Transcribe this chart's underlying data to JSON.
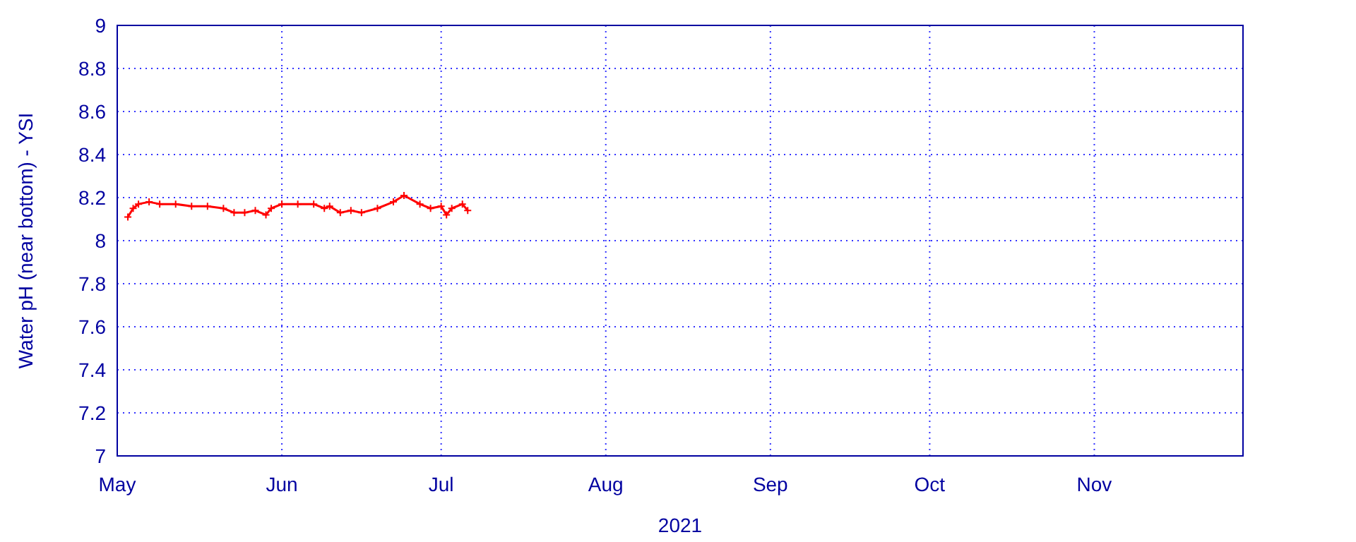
{
  "chart_data": {
    "type": "line",
    "xlabel": "2021",
    "ylabel": "Water pH (near bottom) - YSI",
    "xlim": [
      "2021-05-01",
      "2021-11-29"
    ],
    "xticks": [
      {
        "value": "2021-05-01",
        "label": "May"
      },
      {
        "value": "2021-06-01",
        "label": "Jun"
      },
      {
        "value": "2021-07-01",
        "label": "Jul"
      },
      {
        "value": "2021-08-01",
        "label": "Aug"
      },
      {
        "value": "2021-09-01",
        "label": "Sep"
      },
      {
        "value": "2021-10-01",
        "label": "Oct"
      },
      {
        "value": "2021-11-01",
        "label": "Nov"
      }
    ],
    "ylim": [
      7,
      9
    ],
    "yticks": [
      7,
      7.2,
      7.4,
      7.6,
      7.8,
      8,
      8.2,
      8.4,
      8.6,
      8.8,
      9
    ],
    "grid": true,
    "marker": "cross",
    "line_style": "solid",
    "x": [
      "2021-05-03",
      "2021-05-04",
      "2021-05-05",
      "2021-05-07",
      "2021-05-09",
      "2021-05-12",
      "2021-05-15",
      "2021-05-18",
      "2021-05-21",
      "2021-05-23",
      "2021-05-25",
      "2021-05-27",
      "2021-05-29",
      "2021-05-30",
      "2021-06-01",
      "2021-06-04",
      "2021-06-07",
      "2021-06-09",
      "2021-06-10",
      "2021-06-12",
      "2021-06-14",
      "2021-06-16",
      "2021-06-19",
      "2021-06-22",
      "2021-06-24",
      "2021-06-27",
      "2021-06-29",
      "2021-07-01",
      "2021-07-02",
      "2021-07-03",
      "2021-07-05",
      "2021-07-06"
    ],
    "series": [
      {
        "color": "#ff0000",
        "values": [
          8.11,
          8.15,
          8.17,
          8.18,
          8.17,
          8.17,
          8.16,
          8.16,
          8.15,
          8.13,
          8.13,
          8.14,
          8.12,
          8.15,
          8.17,
          8.17,
          8.17,
          8.15,
          8.16,
          8.13,
          8.14,
          8.13,
          8.15,
          8.18,
          8.21,
          8.17,
          8.15,
          8.16,
          8.12,
          8.15,
          8.17,
          8.14
        ]
      }
    ]
  }
}
